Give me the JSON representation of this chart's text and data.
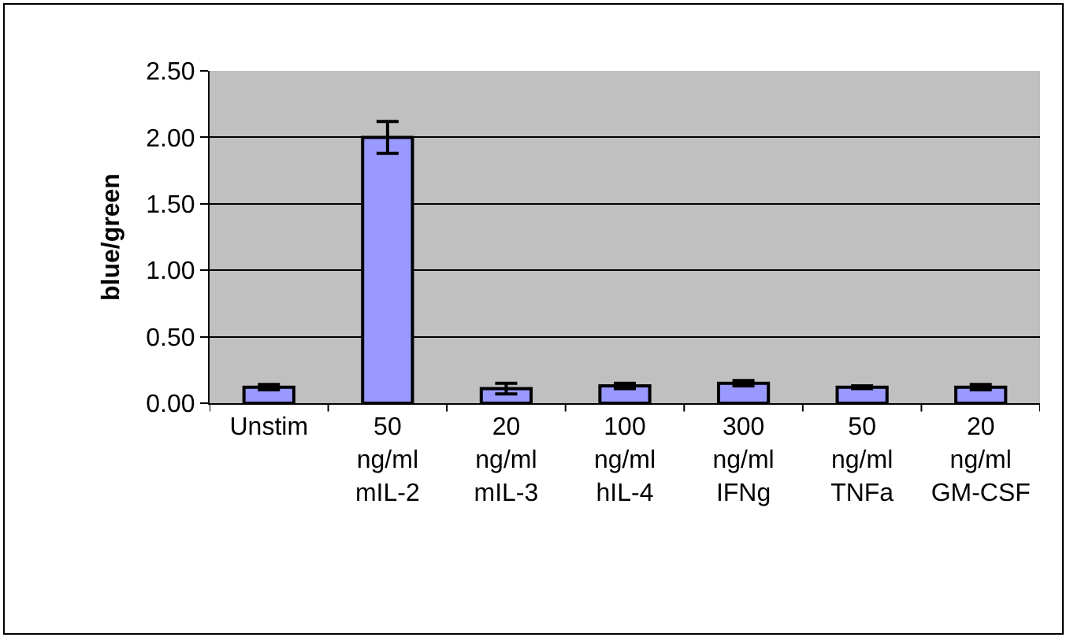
{
  "chart_data": {
    "type": "bar",
    "ylabel": "blue/green",
    "categories": [
      "Unstim",
      "50 ng/ml mIL-2",
      "20 ng/ml mIL-3",
      "100 ng/ml hIL-4",
      "300 ng/ml IFNg",
      "50 ng/ml TNFa",
      "20 ng/ml GM-CSF"
    ],
    "values": [
      0.12,
      2.0,
      0.11,
      0.13,
      0.15,
      0.12,
      0.12
    ],
    "errors": [
      0.02,
      0.12,
      0.04,
      0.02,
      0.02,
      0.01,
      0.02
    ],
    "color": "#9999ff",
    "ylim": [
      0,
      2.5
    ],
    "yticks": [
      {
        "value": 0,
        "label": "0.00"
      },
      {
        "value": 0.5,
        "label": "0.50"
      },
      {
        "value": 1,
        "label": "1.00"
      },
      {
        "value": 1.5,
        "label": "1.50"
      },
      {
        "value": 2,
        "label": "2.00"
      },
      {
        "value": 2.5,
        "label": "2.50"
      }
    ],
    "grid": "y"
  }
}
